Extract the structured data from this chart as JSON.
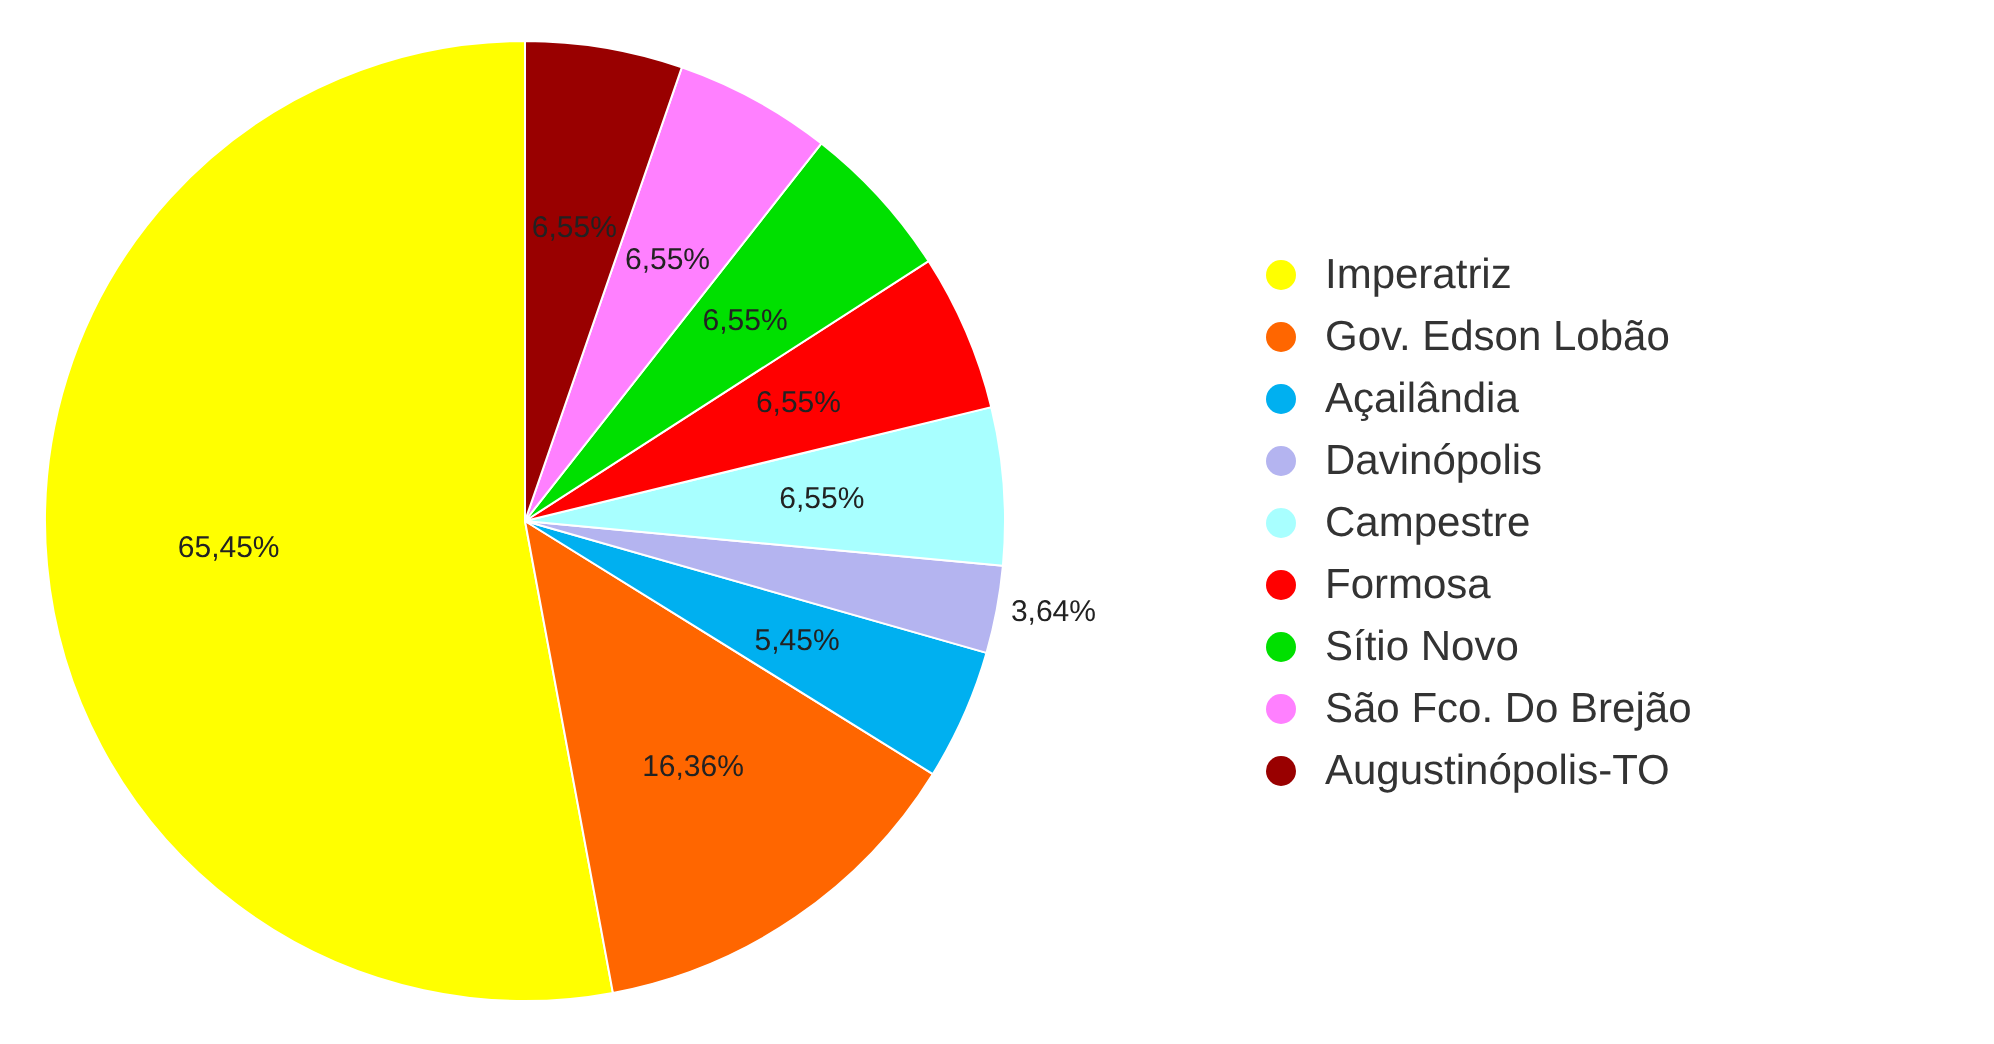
{
  "chart_data": {
    "type": "pie",
    "categories": [
      "Imperatriz",
      "Gov. Edson Lobão",
      "Açailândia",
      "Davinópolis",
      "Campestre",
      "Formosa",
      "Sítio Novo",
      "São Fco. Do Brejão",
      "Augustinópolis-TO"
    ],
    "values": [
      65.45,
      16.36,
      5.45,
      3.64,
      6.55,
      6.55,
      6.55,
      6.55,
      6.55
    ],
    "value_labels": [
      "65,45%",
      "16,36%",
      "5,45%",
      "3,64%",
      "6,55%",
      "6,55%",
      "6,55%",
      "6,55%",
      "6,55%"
    ],
    "colors": [
      "#ffff00",
      "#ff6600",
      "#00b0f0",
      "#b4b4f0",
      "#a8ffff",
      "#ff0000",
      "#00e000",
      "#ff80ff",
      "#990000"
    ],
    "legend": "right"
  }
}
